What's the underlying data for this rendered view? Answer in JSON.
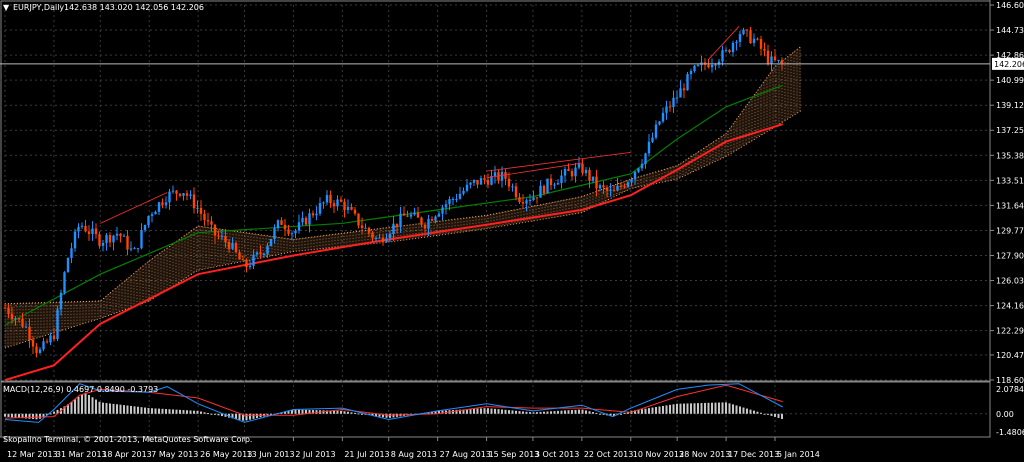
{
  "main_chart": {
    "title": "EURJPY,Daily",
    "ohlc_text": "142.638 143.020 142.056 142.206",
    "current_price": "142.206",
    "y_ticks": [
      "146.600",
      "144.730",
      "142.860",
      "140.990",
      "139.120",
      "137.250",
      "135.380",
      "133.510",
      "131.640",
      "129.770",
      "127.900",
      "126.030",
      "124.160",
      "122.290",
      "120.475",
      "118.605"
    ],
    "x_ticks": [
      "12 Mar 2013",
      "31 Mar 2013",
      "18 Apr 2013",
      "7 May 2013",
      "26 May 2013",
      "13 Jun 2013",
      "2 Jul 2013",
      "21 Jul 2013",
      "8 Aug 2013",
      "27 Aug 2013",
      "15 Sep 2013",
      "3 Oct 2013",
      "22 Oct 2013",
      "10 Nov 2013",
      "28 Nov 2013",
      "17 Dec 2013",
      "5 Jan 2014"
    ]
  },
  "macd": {
    "title": "MACD(12,26,9) 0.4697 0.8490 -0.3793",
    "y_ticks": [
      "2.0784",
      "0.00",
      "-1.4806"
    ]
  },
  "copyright": "Skopalino Terminal, © 2001-2013, MetaQuotes Software Corp.",
  "colors": {
    "background": "#000000",
    "grid": "#3a3a3a",
    "bull": "#1e90ff",
    "bear": "#ff4500",
    "ma_fast": "#008000",
    "ma_slow": "#ff2020",
    "cloud": "#f4a460"
  },
  "chart_data": {
    "type": "candlestick",
    "price_anchors": [
      [
        "12 Mar 2013",
        124.0
      ],
      [
        "20 Mar 2013",
        122.6
      ],
      [
        "25 Mar 2013",
        120.6
      ],
      [
        "31 Mar 2013",
        122.0
      ],
      [
        "5 Apr 2013",
        127.5
      ],
      [
        "10 Apr 2013",
        130.3
      ],
      [
        "18 Apr 2013",
        129.0
      ],
      [
        "25 Apr 2013",
        129.6
      ],
      [
        "1 May 2013",
        128.0
      ],
      [
        "7 May 2013",
        131.0
      ],
      [
        "14 May 2013",
        132.4
      ],
      [
        "20 May 2013",
        132.8
      ],
      [
        "26 May 2013",
        131.4
      ],
      [
        "1 Jun 2013",
        129.5
      ],
      [
        "7 Jun 2013",
        128.8
      ],
      [
        "13 Jun 2013",
        127.0
      ],
      [
        "20 Jun 2013",
        128.2
      ],
      [
        "27 Jun 2013",
        130.5
      ],
      [
        "2 Jul 2013",
        129.6
      ],
      [
        "9 Jul 2013",
        131.0
      ],
      [
        "15 Jul 2013",
        132.0
      ],
      [
        "21 Jul 2013",
        131.8
      ],
      [
        "28 Jul 2013",
        130.2
      ],
      [
        "4 Aug 2013",
        129.0
      ],
      [
        "8 Aug 2013",
        129.8
      ],
      [
        "15 Aug 2013",
        131.0
      ],
      [
        "22 Aug 2013",
        130.3
      ],
      [
        "27 Aug 2013",
        131.3
      ],
      [
        "3 Sep 2013",
        132.3
      ],
      [
        "10 Sep 2013",
        133.3
      ],
      [
        "15 Sep 2013",
        133.6
      ],
      [
        "22 Sep 2013",
        133.8
      ],
      [
        "28 Sep 2013",
        132.2
      ],
      [
        "3 Oct 2013",
        132.3
      ],
      [
        "10 Oct 2013",
        133.4
      ],
      [
        "16 Oct 2013",
        134.0
      ],
      [
        "22 Oct 2013",
        134.4
      ],
      [
        "28 Oct 2013",
        133.0
      ],
      [
        "3 Nov 2013",
        132.5
      ],
      [
        "10 Nov 2013",
        133.8
      ],
      [
        "16 Nov 2013",
        135.6
      ],
      [
        "22 Nov 2013",
        138.3
      ],
      [
        "28 Nov 2013",
        139.8
      ],
      [
        "4 Dec 2013",
        141.6
      ],
      [
        "10 Dec 2013",
        142.3
      ],
      [
        "17 Dec 2013",
        143.0
      ],
      [
        "22 Dec 2013",
        144.6
      ],
      [
        "28 Dec 2013",
        144.0
      ],
      [
        "3 Jan 2014",
        142.4
      ],
      [
        "8 Jan 2014",
        142.2
      ]
    ],
    "ma_fast": [
      [
        "12 Mar 2013",
        122.7
      ],
      [
        "18 Apr 2013",
        126.5
      ],
      [
        "26 May 2013",
        129.6
      ],
      [
        "21 Jul 2013",
        130.3
      ],
      [
        "27 Aug 2013",
        131.3
      ],
      [
        "3 Oct 2013",
        132.3
      ],
      [
        "10 Nov 2013",
        134.0
      ],
      [
        "28 Nov 2013",
        136.6
      ],
      [
        "17 Dec 2013",
        139.0
      ],
      [
        "8 Jan 2014",
        140.6
      ]
    ],
    "ma_slow": [
      [
        "12 Mar 2013",
        118.6
      ],
      [
        "31 Mar 2013",
        119.7
      ],
      [
        "18 Apr 2013",
        122.8
      ],
      [
        "26 May 2013",
        126.5
      ],
      [
        "2 Jul 2013",
        127.9
      ],
      [
        "8 Aug 2013",
        129.1
      ],
      [
        "15 Sep 2013",
        130.2
      ],
      [
        "22 Oct 2013",
        131.3
      ],
      [
        "10 Nov 2013",
        132.4
      ],
      [
        "28 Nov 2013",
        134.3
      ],
      [
        "17 Dec 2013",
        136.4
      ],
      [
        "8 Jan 2014",
        137.7
      ]
    ],
    "cloud_upper": [
      [
        "12 Mar 2013",
        124.3
      ],
      [
        "18 Apr 2013",
        124.5
      ],
      [
        "7 May 2013",
        127.5
      ],
      [
        "26 May 2013",
        130.1
      ],
      [
        "2 Jul 2013",
        129.1
      ],
      [
        "8 Aug 2013",
        130.0
      ],
      [
        "15 Sep 2013",
        130.9
      ],
      [
        "22 Oct 2013",
        132.3
      ],
      [
        "10 Nov 2013",
        133.6
      ],
      [
        "28 Nov 2013",
        134.6
      ],
      [
        "17 Dec 2013",
        137.0
      ],
      [
        "5 Jan 2014",
        142.0
      ],
      [
        "15 Jan 2014",
        143.5
      ]
    ],
    "cloud_lower": [
      [
        "12 Mar 2013",
        121.0
      ],
      [
        "18 Apr 2013",
        123.2
      ],
      [
        "7 May 2013",
        124.5
      ],
      [
        "26 May 2013",
        126.8
      ],
      [
        "2 Jul 2013",
        128.2
      ],
      [
        "8 Aug 2013",
        128.9
      ],
      [
        "15 Sep 2013",
        129.9
      ],
      [
        "22 Oct 2013",
        131.1
      ],
      [
        "10 Nov 2013",
        132.9
      ],
      [
        "28 Nov 2013",
        133.6
      ],
      [
        "17 Dec 2013",
        135.3
      ],
      [
        "5 Jan 2014",
        137.5
      ],
      [
        "15 Jan 2014",
        138.7
      ]
    ],
    "trendlines": [
      [
        [
          "18 Apr 2013",
          130.3
        ],
        [
          "14 May 2013",
          132.6
        ]
      ],
      [
        [
          "15 Sep 2013",
          134.2
        ],
        [
          "10 Nov 2013",
          135.6
        ]
      ],
      [
        [
          "15 Sep 2013",
          133.7
        ],
        [
          "22 Oct 2013",
          134.8
        ]
      ],
      [
        [
          "10 Dec 2013",
          142.5
        ],
        [
          "22 Dec 2013",
          145.0
        ]
      ]
    ],
    "macd_main": [
      [
        "12 Mar 2013",
        -0.4
      ],
      [
        "25 Mar 2013",
        -0.6
      ],
      [
        "31 Mar 2013",
        0.3
      ],
      [
        "10 Apr 2013",
        2.1
      ],
      [
        "18 Apr 2013",
        1.6
      ],
      [
        "7 May 2013",
        1.5
      ],
      [
        "14 May 2013",
        1.9
      ],
      [
        "26 May 2013",
        0.7
      ],
      [
        "13 Jun 2013",
        -0.6
      ],
      [
        "2 Jul 2013",
        0.3
      ],
      [
        "21 Jul 2013",
        0.4
      ],
      [
        "8 Aug 2013",
        -0.4
      ],
      [
        "27 Aug 2013",
        0.2
      ],
      [
        "15 Sep 2013",
        0.7
      ],
      [
        "3 Oct 2013",
        0.2
      ],
      [
        "22 Oct 2013",
        0.6
      ],
      [
        "3 Nov 2013",
        -0.2
      ],
      [
        "10 Nov 2013",
        0.4
      ],
      [
        "28 Nov 2013",
        1.7
      ],
      [
        "10 Dec 2013",
        2.0
      ],
      [
        "22 Dec 2013",
        2.1
      ],
      [
        "8 Jan 2014",
        0.47
      ]
    ],
    "macd_signal": [
      [
        "12 Mar 2013",
        -0.3
      ],
      [
        "31 Mar 2013",
        -0.2
      ],
      [
        "10 Apr 2013",
        1.3
      ],
      [
        "18 Apr 2013",
        1.7
      ],
      [
        "7 May 2013",
        1.5
      ],
      [
        "26 May 2013",
        1.1
      ],
      [
        "13 Jun 2013",
        -0.1
      ],
      [
        "2 Jul 2013",
        -0.1
      ],
      [
        "21 Jul 2013",
        0.3
      ],
      [
        "8 Aug 2013",
        -0.1
      ],
      [
        "27 Aug 2013",
        0.0
      ],
      [
        "15 Sep 2013",
        0.5
      ],
      [
        "3 Oct 2013",
        0.4
      ],
      [
        "22 Oct 2013",
        0.4
      ],
      [
        "10 Nov 2013",
        0.1
      ],
      [
        "28 Nov 2013",
        1.2
      ],
      [
        "17 Dec 2013",
        2.0
      ],
      [
        "8 Jan 2014",
        0.85
      ]
    ],
    "macd_hist": [
      [
        "12 Mar 2013",
        -0.2
      ],
      [
        "25 Mar 2013",
        -0.4
      ],
      [
        "5 Apr 2013",
        0.6
      ],
      [
        "12 Apr 2013",
        1.5
      ],
      [
        "18 Apr 2013",
        0.8
      ],
      [
        "7 May 2013",
        0.4
      ],
      [
        "26 May 2013",
        0.2
      ],
      [
        "13 Jun 2013",
        -0.5
      ],
      [
        "2 Jul 2013",
        0.3
      ],
      [
        "21 Jul 2013",
        0.2
      ],
      [
        "8 Aug 2013",
        -0.3
      ],
      [
        "27 Aug 2013",
        0.2
      ],
      [
        "15 Sep 2013",
        0.4
      ],
      [
        "3 Oct 2013",
        0.1
      ],
      [
        "22 Oct 2013",
        0.3
      ],
      [
        "3 Nov 2013",
        -0.2
      ],
      [
        "10 Nov 2013",
        0.2
      ],
      [
        "28 Nov 2013",
        0.7
      ],
      [
        "17 Dec 2013",
        0.8
      ],
      [
        "8 Jan 2014",
        -0.38
      ]
    ],
    "price_range": [
      118.605,
      146.6
    ],
    "macd_range": [
      -1.4806,
      2.0784
    ]
  }
}
